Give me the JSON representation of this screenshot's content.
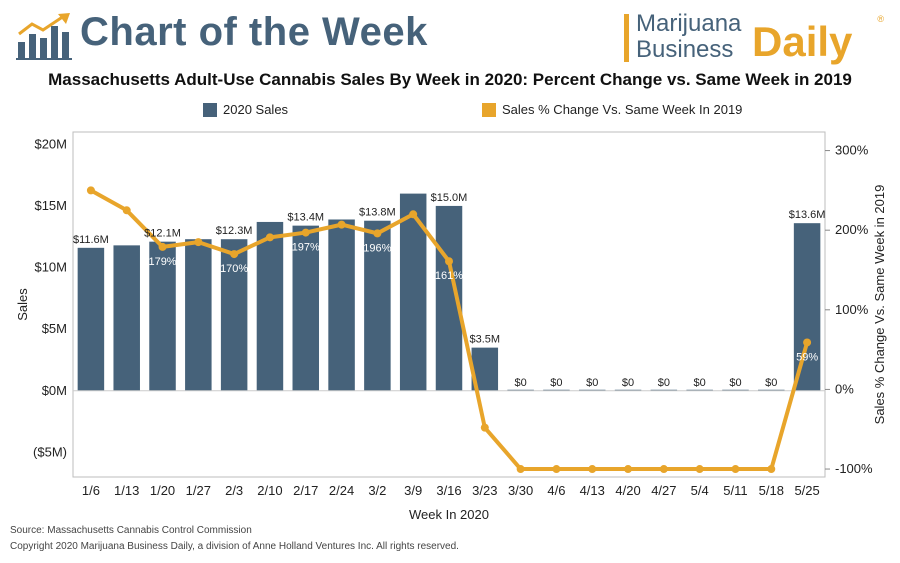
{
  "header": {
    "brand_title": "Chart of the Week",
    "logo_line1": "Marijuana",
    "logo_line2": "Business",
    "logo_daily": "Daily",
    "logo_registered": "®"
  },
  "colors": {
    "bar": "#46627a",
    "line": "#e8a52b",
    "title_blue": "#46627a"
  },
  "icons": {
    "brand": "bar-chart-trend-icon"
  },
  "legend": {
    "sales": "2020 Sales",
    "pct": "Sales % Change Vs. Same Week In 2019"
  },
  "footer": {
    "source": "Source: Massachusetts Cannabis Control Commission",
    "copyright": "Copyright 2020 Marijuana Business Daily, a division of Anne Holland Ventures Inc. All rights reserved."
  },
  "chart_data": {
    "type": "bar",
    "title": "Massachusetts Adult-Use Cannabis Sales By Week in 2020: Percent Change vs. Same Week in 2019",
    "xlabel": "Week In 2020",
    "ylabel": "Sales",
    "y2label": "Sales % Change Vs. Same Week in 2019",
    "ylim": [
      -7,
      21
    ],
    "yticks": [
      "($5M)",
      "$0M",
      "$5M",
      "$10M",
      "$15M",
      "$20M"
    ],
    "ytick_values": [
      -5,
      0,
      5,
      10,
      15,
      20
    ],
    "y2lim": [
      -110,
      323.33
    ],
    "y2ticks": [
      "-100%",
      "0%",
      "100%",
      "200%",
      "300%"
    ],
    "y2tick_values": [
      -100,
      0,
      100,
      200,
      300
    ],
    "categories": [
      "1/6",
      "1/13",
      "1/20",
      "1/27",
      "2/3",
      "2/10",
      "2/17",
      "2/24",
      "3/2",
      "3/9",
      "3/16",
      "3/23",
      "3/30",
      "4/6",
      "4/13",
      "4/20",
      "4/27",
      "5/4",
      "5/11",
      "5/18",
      "5/25"
    ],
    "series": [
      {
        "name": "2020 Sales",
        "type": "bar",
        "values": [
          11.6,
          11.8,
          12.1,
          12.3,
          12.3,
          13.7,
          13.4,
          13.9,
          13.8,
          16.0,
          15.0,
          3.5,
          0,
          0,
          0,
          0,
          0,
          0,
          0,
          0,
          13.6
        ],
        "labels": [
          "$11.6M",
          "",
          "$12.1M",
          "",
          "$12.3M",
          "",
          "$13.4M",
          "",
          "$13.8M",
          "",
          "$15.0M",
          "$3.5M",
          "$0",
          "$0",
          "$0",
          "$0",
          "$0",
          "$0",
          "$0",
          "$0",
          "$13.6M"
        ]
      },
      {
        "name": "Sales % Change Vs. Same Week In 2019",
        "type": "line",
        "axis": "right",
        "values": [
          250,
          225,
          179,
          185,
          170,
          191,
          197,
          207,
          196,
          220,
          161,
          -48,
          -100,
          -100,
          -100,
          -100,
          -100,
          -100,
          -100,
          -100,
          59
        ],
        "labels": [
          "",
          "",
          "179%",
          "",
          "170%",
          "",
          "197%",
          "",
          "196%",
          "",
          "161%",
          "",
          "",
          "",
          "",
          "",
          "",
          "",
          "",
          "",
          "59%"
        ]
      }
    ],
    "grid": false,
    "legend_position": "top"
  }
}
